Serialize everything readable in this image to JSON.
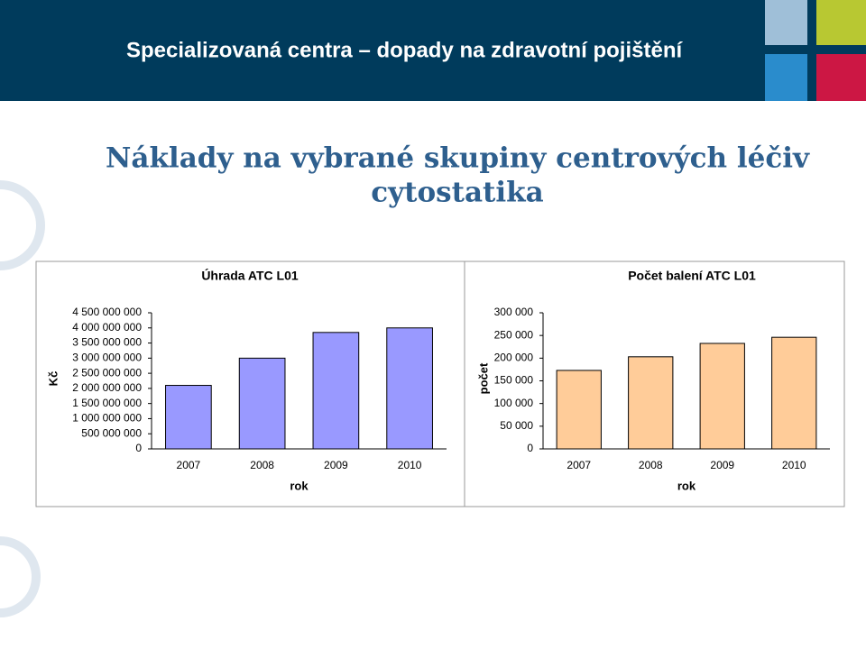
{
  "slide": {
    "header": "Specializovaná centra – dopady na zdravotní pojištění",
    "heading": [
      "Náklady na vybrané skupiny centrových léčiv",
      "cytostatika"
    ]
  },
  "chart_data": [
    {
      "type": "bar",
      "title": "Úhrada ATC L01",
      "x_label": "rok",
      "y_label": "Kč",
      "categories": [
        "2007",
        "2008",
        "2009",
        "2010"
      ],
      "values": [
        2100000000,
        3000000000,
        3850000000,
        4000000000
      ],
      "color": "#9999ff",
      "ylim": [
        0,
        4500000000
      ],
      "yticks": [
        0,
        {
          "value": 500000000,
          "label": "500 000 000"
        },
        {
          "value": 1000000000,
          "label": "1 000 000 000"
        },
        {
          "value": 1500000000,
          "label": "1 500 000 000"
        },
        {
          "value": 2000000000,
          "label": "2 000 000 000"
        },
        {
          "value": 2500000000,
          "label": "2 500 000 000"
        },
        {
          "value": 3000000000,
          "label": "3 000 000 000"
        },
        {
          "value": 3500000000,
          "label": "3 500 000 000"
        },
        {
          "value": 4000000000,
          "label": "4 000 000 000"
        },
        {
          "value": 4500000000,
          "label": "4 500 000 000"
        }
      ]
    },
    {
      "type": "bar",
      "title": "Počet balení ATC L01",
      "x_label": "rok",
      "y_label": "počet",
      "categories": [
        "2007",
        "2008",
        "2009",
        "2010"
      ],
      "values": [
        173000,
        203000,
        232500,
        246000
      ],
      "color": "#ffcc99",
      "ylim": [
        0,
        300000
      ],
      "yticks": [
        0,
        {
          "value": 50000,
          "label": "50 000"
        },
        {
          "value": 100000,
          "label": "100 000"
        },
        {
          "value": 150000,
          "label": "150 000"
        },
        {
          "value": 200000,
          "label": "200 000"
        },
        {
          "value": 250000,
          "label": "250 000"
        },
        {
          "value": 300000,
          "label": "300 000"
        }
      ]
    }
  ]
}
